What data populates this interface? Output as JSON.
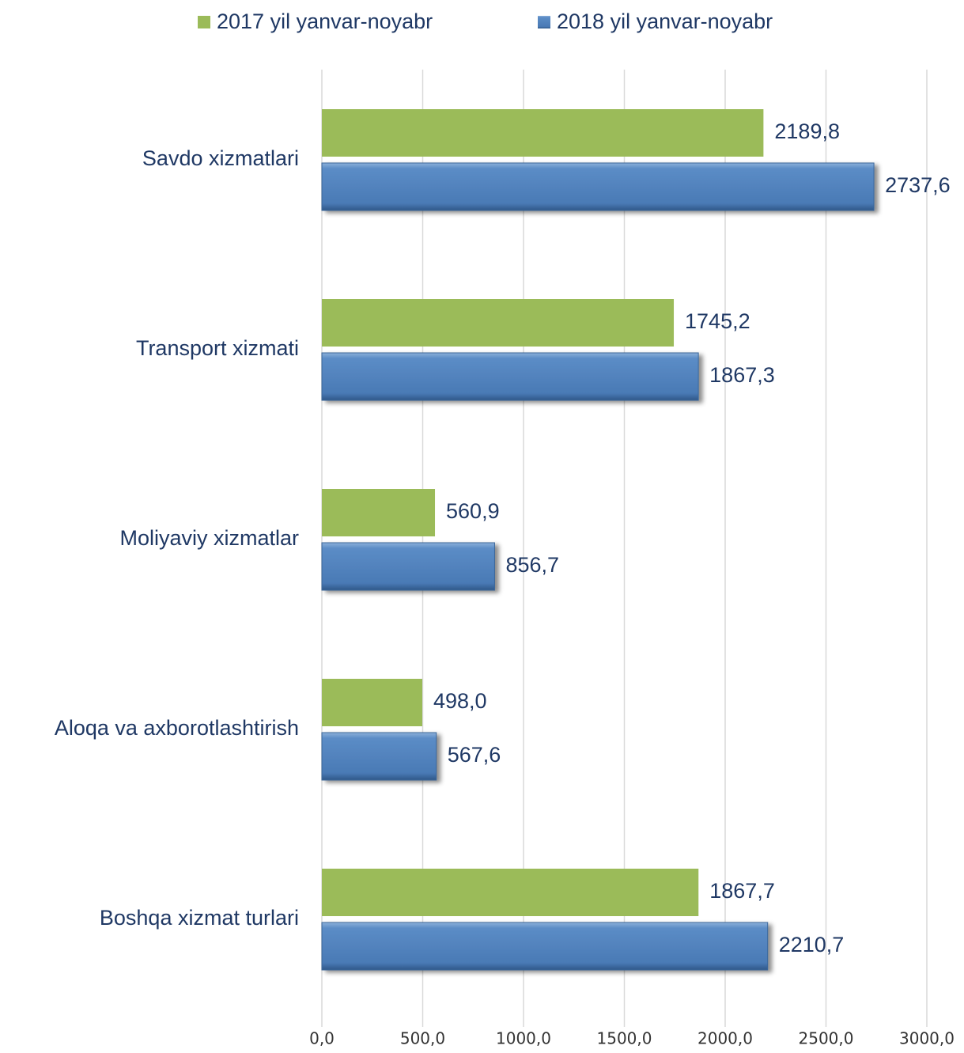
{
  "chart_data": {
    "type": "bar",
    "orientation": "horizontal",
    "title": "",
    "xlabel": "",
    "ylabel": "",
    "categories": [
      "Savdo xizmatlari",
      "Transport xizmati",
      "Moliyaviy xizmatlar",
      "Aloqa va axborotlashtirish",
      "Boshqa xizmat turlari"
    ],
    "series": [
      {
        "name": "2017 yil yanvar-noyabr",
        "color": "#9bbb59",
        "values": [
          2189.8,
          1745.2,
          560.9,
          498.0,
          1867.7
        ],
        "labels": [
          "2189,8",
          "1745,2",
          "560,9",
          "498,0",
          "1867,7"
        ]
      },
      {
        "name": "2018 yil yanvar-noyabr",
        "color": "#4f81bd",
        "values": [
          2737.6,
          1867.3,
          856.7,
          567.6,
          2210.7
        ],
        "labels": [
          "2737,6",
          "1867,3",
          "856,7",
          "567,6",
          "2210,7"
        ]
      }
    ],
    "xlim": [
      0,
      3000
    ],
    "xticks": [
      0,
      500,
      1000,
      1500,
      2000,
      2500,
      3000
    ],
    "xtick_labels": [
      "0,0",
      "500,0",
      "1000,0",
      "1500,0",
      "2000,0",
      "2500,0",
      "3000,0"
    ],
    "grid": "vertical",
    "legend": "top-center"
  }
}
